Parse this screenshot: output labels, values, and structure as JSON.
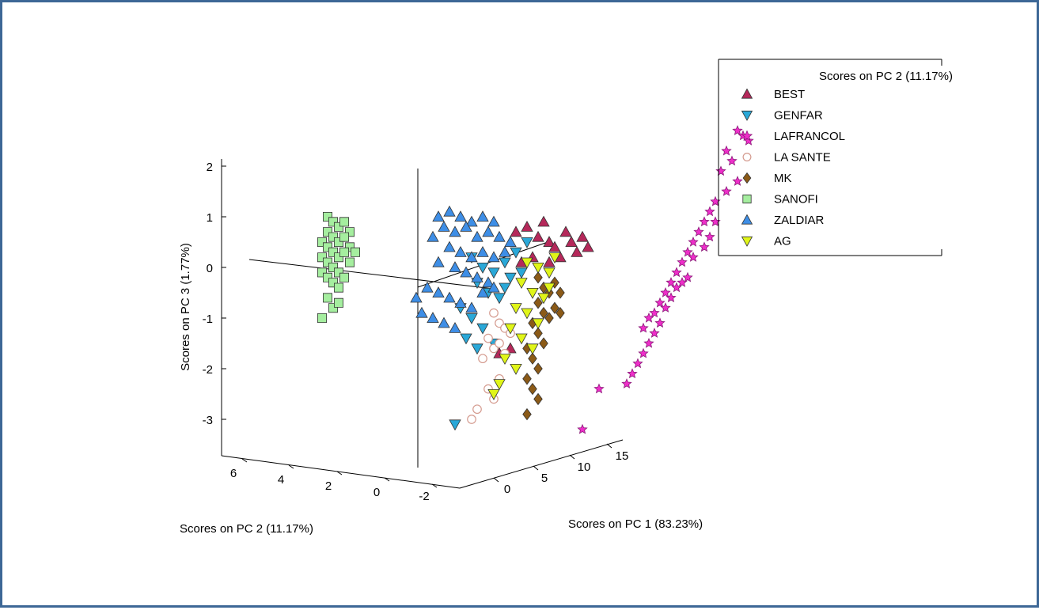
{
  "chart_data": {
    "type": "scatter",
    "projection": "3d",
    "title": "",
    "axes": {
      "x": {
        "label": "Scores on PC 1 (83.23%)",
        "ticks": [
          "0",
          "5",
          "10",
          "15"
        ]
      },
      "y": {
        "label": "Scores on PC 2 (11.17%)",
        "ticks": [
          "6",
          "4",
          "2",
          "0",
          "-2"
        ]
      },
      "z": {
        "label": "Scores on PC 3 (1.77%)",
        "ticks": [
          "2",
          "1",
          "0",
          "-1",
          "-2",
          "-3"
        ]
      }
    },
    "legend": {
      "title": "Scores on PC 2 (11.17%)",
      "placement": "top-right"
    },
    "series": [
      {
        "name": "BEST",
        "marker": "triangle-up",
        "color": "#b5285a",
        "points": [
          [
            20,
            0.7
          ],
          [
            22,
            0.8
          ],
          [
            24,
            0.6
          ],
          [
            25,
            0.9
          ],
          [
            26,
            0.5
          ],
          [
            27,
            0.4
          ],
          [
            29,
            0.7
          ],
          [
            30,
            0.5
          ],
          [
            31,
            0.3
          ],
          [
            23,
            0.2
          ],
          [
            28,
            0.2
          ],
          [
            32,
            0.6
          ],
          [
            33,
            0.4
          ],
          [
            21,
            0.1
          ],
          [
            26,
            0.1
          ],
          [
            17,
            -1.7
          ],
          [
            19,
            -1.6
          ]
        ]
      },
      {
        "name": "GENFAR",
        "marker": "triangle-down",
        "color": "#2aa8d8",
        "points": [
          [
            12,
            0.2
          ],
          [
            14,
            0.0
          ],
          [
            16,
            -0.1
          ],
          [
            18,
            0.1
          ],
          [
            13,
            -0.3
          ],
          [
            15,
            -0.5
          ],
          [
            17,
            -0.6
          ],
          [
            10,
            -0.8
          ],
          [
            12,
            -1.0
          ],
          [
            14,
            -1.2
          ],
          [
            18,
            -0.4
          ],
          [
            19,
            -0.2
          ],
          [
            11,
            -1.4
          ],
          [
            13,
            -1.6
          ],
          [
            16,
            -1.5
          ],
          [
            20,
            0.3
          ],
          [
            22,
            0.5
          ],
          [
            21,
            -0.1
          ],
          [
            9,
            -3.1
          ]
        ]
      },
      {
        "name": "LAFRANCOL",
        "marker": "star",
        "color": "#ee2ec9",
        "points": [
          [
            60,
            2.7
          ],
          [
            61,
            2.6
          ],
          [
            62,
            2.5
          ],
          [
            58,
            2.3
          ],
          [
            59,
            2.1
          ],
          [
            57,
            1.9
          ],
          [
            60,
            1.7
          ],
          [
            58,
            1.5
          ],
          [
            56,
            1.3
          ],
          [
            55,
            1.1
          ],
          [
            54,
            0.9
          ],
          [
            53,
            0.7
          ],
          [
            52,
            0.5
          ],
          [
            51,
            0.3
          ],
          [
            50,
            0.1
          ],
          [
            49,
            -0.1
          ],
          [
            48,
            -0.3
          ],
          [
            47,
            -0.5
          ],
          [
            46,
            -0.7
          ],
          [
            45,
            -0.9
          ],
          [
            44,
            -1.0
          ],
          [
            43,
            -1.2
          ],
          [
            56,
            0.9
          ],
          [
            55,
            0.6
          ],
          [
            54,
            0.4
          ],
          [
            52,
            0.2
          ],
          [
            51,
            -0.2
          ],
          [
            50,
            -0.3
          ],
          [
            49,
            -0.4
          ],
          [
            48,
            -0.6
          ],
          [
            47,
            -0.8
          ],
          [
            46,
            -1.1
          ],
          [
            45,
            -1.3
          ],
          [
            44,
            -1.5
          ],
          [
            43,
            -1.7
          ],
          [
            42,
            -1.9
          ],
          [
            41,
            -2.1
          ],
          [
            40,
            -2.3
          ],
          [
            35,
            -2.4
          ],
          [
            32,
            -3.2
          ]
        ]
      },
      {
        "name": "LA SANTE",
        "marker": "circle",
        "color": "#d49a8e",
        "points": [
          [
            16,
            -0.9
          ],
          [
            17,
            -1.1
          ],
          [
            18,
            -1.2
          ],
          [
            19,
            -1.3
          ],
          [
            15,
            -1.4
          ],
          [
            16,
            -1.6
          ],
          [
            18,
            -1.7
          ],
          [
            17,
            -1.5
          ],
          [
            14,
            -1.8
          ],
          [
            15,
            -2.4
          ],
          [
            16,
            -2.6
          ],
          [
            17,
            -2.2
          ],
          [
            12,
            -3.0
          ],
          [
            13,
            -2.8
          ]
        ]
      },
      {
        "name": "MK",
        "marker": "diamond",
        "color": "#8b5a17",
        "points": [
          [
            24,
            -0.2
          ],
          [
            25,
            -0.4
          ],
          [
            26,
            -0.5
          ],
          [
            27,
            -0.3
          ],
          [
            24,
            -0.7
          ],
          [
            25,
            -0.9
          ],
          [
            26,
            -1.0
          ],
          [
            27,
            -0.8
          ],
          [
            23,
            -1.1
          ],
          [
            24,
            -1.3
          ],
          [
            25,
            -1.5
          ],
          [
            22,
            -1.6
          ],
          [
            23,
            -1.8
          ],
          [
            24,
            -2.0
          ],
          [
            22,
            -2.2
          ],
          [
            23,
            -2.4
          ],
          [
            24,
            -2.6
          ],
          [
            22,
            -2.9
          ],
          [
            28,
            -0.5
          ],
          [
            28,
            -0.9
          ]
        ]
      },
      {
        "name": "SANOFI",
        "marker": "square",
        "color": "#a5ee9f",
        "points": [
          [
            -14,
            1.0
          ],
          [
            -13,
            0.9
          ],
          [
            -12,
            0.8
          ],
          [
            -11,
            0.9
          ],
          [
            -10,
            0.7
          ],
          [
            -14,
            0.7
          ],
          [
            -13,
            0.6
          ],
          [
            -12,
            0.5
          ],
          [
            -11,
            0.6
          ],
          [
            -10,
            0.4
          ],
          [
            -15,
            0.5
          ],
          [
            -14,
            0.4
          ],
          [
            -13,
            0.3
          ],
          [
            -12,
            0.2
          ],
          [
            -11,
            0.3
          ],
          [
            -15,
            0.2
          ],
          [
            -14,
            0.1
          ],
          [
            -13,
            0.0
          ],
          [
            -12,
            -0.1
          ],
          [
            -15,
            -0.1
          ],
          [
            -14,
            -0.2
          ],
          [
            -13,
            -0.3
          ],
          [
            -12,
            -0.4
          ],
          [
            -11,
            -0.2
          ],
          [
            -10,
            0.1
          ],
          [
            -9,
            0.3
          ],
          [
            -14,
            -0.6
          ],
          [
            -13,
            -0.8
          ],
          [
            -15,
            -1.0
          ],
          [
            -12,
            -0.7
          ]
        ]
      },
      {
        "name": "ZALDIAR",
        "marker": "triangle-up",
        "color": "#3e8ee6",
        "points": [
          [
            6,
            1.0
          ],
          [
            8,
            1.1
          ],
          [
            10,
            1.0
          ],
          [
            12,
            0.9
          ],
          [
            14,
            1.0
          ],
          [
            16,
            0.9
          ],
          [
            7,
            0.8
          ],
          [
            9,
            0.7
          ],
          [
            11,
            0.8
          ],
          [
            13,
            0.6
          ],
          [
            15,
            0.7
          ],
          [
            17,
            0.6
          ],
          [
            5,
            0.6
          ],
          [
            8,
            0.4
          ],
          [
            10,
            0.3
          ],
          [
            12,
            0.2
          ],
          [
            14,
            0.3
          ],
          [
            16,
            0.2
          ],
          [
            6,
            0.1
          ],
          [
            9,
            0.0
          ],
          [
            11,
            -0.1
          ],
          [
            13,
            -0.2
          ],
          [
            15,
            -0.3
          ],
          [
            4,
            -0.4
          ],
          [
            6,
            -0.5
          ],
          [
            8,
            -0.6
          ],
          [
            10,
            -0.7
          ],
          [
            12,
            -0.8
          ],
          [
            2,
            -0.6
          ],
          [
            3,
            -0.9
          ],
          [
            5,
            -1.0
          ],
          [
            7,
            -1.1
          ],
          [
            9,
            -1.2
          ],
          [
            14,
            -0.5
          ],
          [
            16,
            -0.4
          ],
          [
            18,
            0.3
          ],
          [
            19,
            0.5
          ]
        ]
      },
      {
        "name": "AG",
        "marker": "triangle-down",
        "color": "#e0f519",
        "points": [
          [
            22,
            0.1
          ],
          [
            24,
            0.0
          ],
          [
            26,
            -0.1
          ],
          [
            21,
            -0.3
          ],
          [
            23,
            -0.5
          ],
          [
            25,
            -0.6
          ],
          [
            20,
            -0.8
          ],
          [
            22,
            -0.9
          ],
          [
            24,
            -1.1
          ],
          [
            19,
            -1.2
          ],
          [
            21,
            -1.4
          ],
          [
            23,
            -1.6
          ],
          [
            18,
            -1.8
          ],
          [
            20,
            -2.0
          ],
          [
            17,
            -2.3
          ],
          [
            16,
            -2.5
          ],
          [
            26,
            -0.4
          ],
          [
            27,
            0.2
          ]
        ]
      }
    ]
  }
}
